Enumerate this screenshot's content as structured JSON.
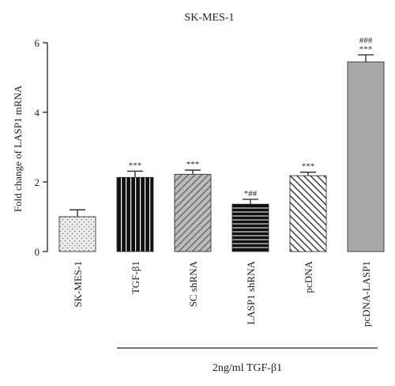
{
  "chart_data": {
    "type": "bar",
    "title": "SK-MES-1",
    "ylabel": "Fold change of LASP1 mRNA",
    "ylim": [
      0,
      6
    ],
    "yticks": [
      "0",
      "2",
      "4",
      "6"
    ],
    "categories": [
      "SK-MES-1",
      "TGF-β1",
      "SC shRNA",
      "LASP1 shRNA",
      "pcDNA",
      "pcDNA-LASP1"
    ],
    "values": [
      1.0,
      2.13,
      2.22,
      1.36,
      2.18,
      5.45
    ],
    "errors": [
      0.2,
      0.18,
      0.12,
      0.14,
      0.1,
      0.2
    ],
    "annotations": [
      "",
      "***",
      "***",
      "*##",
      "***",
      "###\n***"
    ],
    "patterns": [
      "dots",
      "vertical-stripes",
      "diagonal-right-gray",
      "horizontal-stripes",
      "diagonal-left",
      "solid-gray"
    ],
    "group_label": "2ng/ml TGF-β1",
    "grid": false,
    "legend": "none"
  }
}
